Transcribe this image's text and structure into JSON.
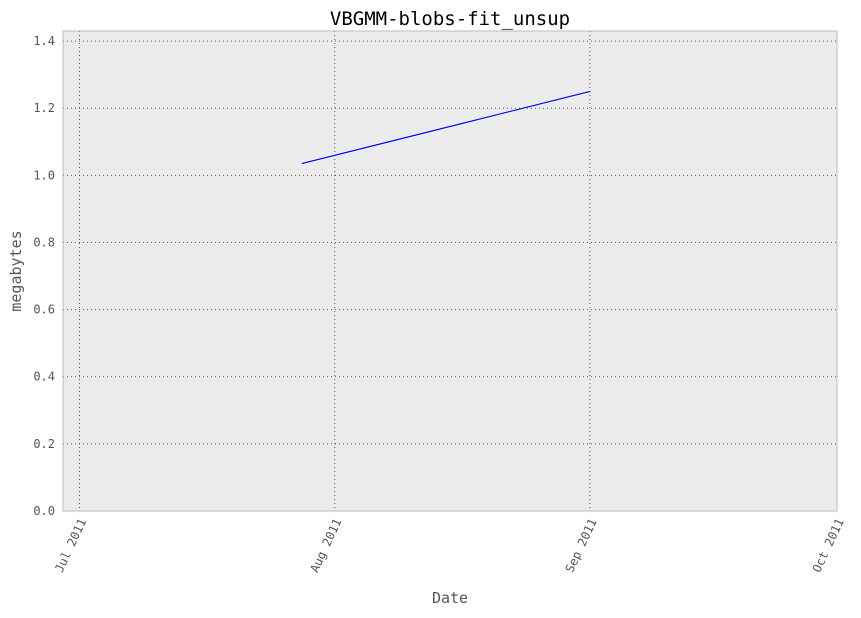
{
  "chart_data": {
    "type": "line",
    "title": "VBGMM-blobs-fit_unsup",
    "xlabel": "Date",
    "ylabel": "megabytes",
    "x_ticks": [
      "Jul 2011",
      "Aug 2011",
      "Sep 2011",
      "Oct 2011"
    ],
    "x_tick_dates": [
      "2011-07-01",
      "2011-08-01",
      "2011-09-01",
      "2011-10-01"
    ],
    "xlim": [
      "2011-06-29",
      "2011-10-01"
    ],
    "y_ticks": [
      "0.0",
      "0.2",
      "0.4",
      "0.6",
      "0.8",
      "1.0",
      "1.2",
      "1.4"
    ],
    "ylim": [
      0,
      1.43
    ],
    "grid": true,
    "series": [
      {
        "x": [
          "2011-07-28",
          "2011-09-01"
        ],
        "y": [
          1.035,
          1.25
        ]
      }
    ],
    "colors": {
      "line": "#0000ff",
      "plot_background": "#ececec",
      "grid": "#555555",
      "frame": "#bcbcbc"
    }
  }
}
